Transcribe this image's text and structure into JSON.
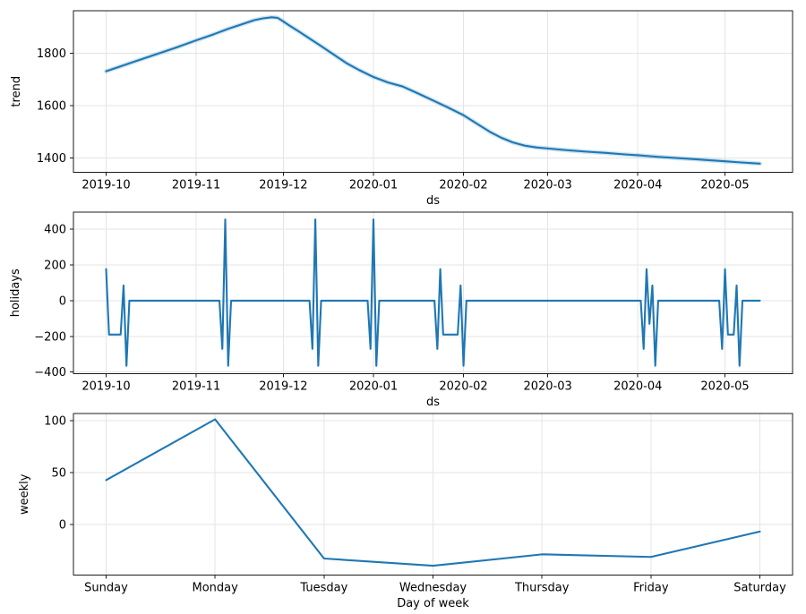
{
  "figure": {
    "kind": "matplotlib-forecast-components",
    "background": "#ffffff",
    "line_color": "#1f77b4",
    "uncertainty_color": "#0072B2",
    "grid_color": "#e5e5e5",
    "spine_color": "#1c1c1c",
    "text_color": "#000000"
  },
  "chart_data": [
    {
      "type": "line",
      "name": "trend",
      "xlabel": "ds",
      "ylabel": "trend",
      "x_unit": "days since 2019-10-01",
      "xlim": [
        -11.25,
        236.25
      ],
      "ylim": [
        1345,
        1962
      ],
      "grid": true,
      "uncertainty_halo": true,
      "xticks": {
        "values": [
          0,
          31,
          61,
          92,
          123,
          152,
          183,
          213
        ],
        "labels": [
          "2019-10",
          "2019-11",
          "2019-12",
          "2020-01",
          "2020-02",
          "2020-03",
          "2020-04",
          "2020-05"
        ]
      },
      "yticks": {
        "values": [
          1400,
          1600,
          1800
        ],
        "labels": [
          "1400",
          "1600",
          "1800"
        ]
      },
      "points": [
        [
          0,
          1731
        ],
        [
          8,
          1761
        ],
        [
          16,
          1791
        ],
        [
          24,
          1821
        ],
        [
          31,
          1849
        ],
        [
          37,
          1872
        ],
        [
          42,
          1893
        ],
        [
          45,
          1904
        ],
        [
          48,
          1915
        ],
        [
          51,
          1926
        ],
        [
          54,
          1933
        ],
        [
          57,
          1937
        ],
        [
          59,
          1935
        ],
        [
          61,
          1921
        ],
        [
          63,
          1906
        ],
        [
          66,
          1885
        ],
        [
          70,
          1856
        ],
        [
          74,
          1827
        ],
        [
          78,
          1797
        ],
        [
          83,
          1760
        ],
        [
          87,
          1736
        ],
        [
          92,
          1709
        ],
        [
          97,
          1688
        ],
        [
          102,
          1673
        ],
        [
          107,
          1648
        ],
        [
          112,
          1622
        ],
        [
          117,
          1596
        ],
        [
          123,
          1563
        ],
        [
          128,
          1528
        ],
        [
          132,
          1500
        ],
        [
          136,
          1477
        ],
        [
          140,
          1459
        ],
        [
          144,
          1447
        ],
        [
          148,
          1440
        ],
        [
          152,
          1436
        ],
        [
          158,
          1430
        ],
        [
          165,
          1424
        ],
        [
          172,
          1419
        ],
        [
          179,
          1413
        ],
        [
          183,
          1410
        ],
        [
          190,
          1404
        ],
        [
          197,
          1399
        ],
        [
          204,
          1394
        ],
        [
          209,
          1390
        ],
        [
          213,
          1387
        ],
        [
          218,
          1383
        ],
        [
          225,
          1378
        ]
      ]
    },
    {
      "type": "line",
      "name": "holidays",
      "xlabel": "ds",
      "ylabel": "holidays",
      "x_unit": "days since 2019-10-01",
      "xlim": [
        -11.25,
        236.25
      ],
      "ylim": [
        -409,
        496
      ],
      "grid": true,
      "uncertainty_halo": false,
      "xticks": {
        "values": [
          0,
          31,
          61,
          92,
          123,
          152,
          183,
          213
        ],
        "labels": [
          "2019-10",
          "2019-11",
          "2019-12",
          "2020-01",
          "2020-02",
          "2020-03",
          "2020-04",
          "2020-05"
        ]
      },
      "yticks": {
        "values": [
          -400,
          -200,
          0,
          200,
          400
        ],
        "labels": [
          "−400",
          "−200",
          "0",
          "200",
          "400"
        ]
      },
      "daily_range": [
        0,
        225
      ],
      "default_value": 0,
      "nonzero_points": [
        [
          0,
          177
        ],
        [
          1,
          -190
        ],
        [
          2,
          -190
        ],
        [
          3,
          -190
        ],
        [
          4,
          -190
        ],
        [
          5,
          -190
        ],
        [
          6,
          85
        ],
        [
          7,
          -365
        ],
        [
          40,
          -270
        ],
        [
          41,
          455
        ],
        [
          42,
          -365
        ],
        [
          71,
          -270
        ],
        [
          72,
          455
        ],
        [
          73,
          -365
        ],
        [
          91,
          -270
        ],
        [
          92,
          455
        ],
        [
          93,
          -365
        ],
        [
          114,
          -270
        ],
        [
          115,
          177
        ],
        [
          116,
          -190
        ],
        [
          117,
          -190
        ],
        [
          118,
          -190
        ],
        [
          119,
          -190
        ],
        [
          120,
          -190
        ],
        [
          121,
          -190
        ],
        [
          122,
          85
        ],
        [
          123,
          -365
        ],
        [
          185,
          -270
        ],
        [
          186,
          177
        ],
        [
          187,
          -130
        ],
        [
          188,
          85
        ],
        [
          189,
          -365
        ],
        [
          212,
          -270
        ],
        [
          213,
          177
        ],
        [
          214,
          -190
        ],
        [
          215,
          -190
        ],
        [
          216,
          -190
        ],
        [
          217,
          85
        ],
        [
          218,
          -365
        ]
      ]
    },
    {
      "type": "line",
      "name": "weekly",
      "xlabel": "Day of week",
      "ylabel": "weekly",
      "xlim": [
        -0.3,
        6.3
      ],
      "ylim": [
        -49,
        107
      ],
      "grid": true,
      "uncertainty_halo": false,
      "xticks": {
        "values": [
          0,
          1,
          2,
          3,
          4,
          5,
          6
        ],
        "labels": [
          "Sunday",
          "Monday",
          "Tuesday",
          "Wednesday",
          "Thursday",
          "Friday",
          "Saturday"
        ]
      },
      "yticks": {
        "values": [
          0,
          50,
          100
        ],
        "labels": [
          "0",
          "50",
          "100"
        ]
      },
      "categories": [
        "Sunday",
        "Monday",
        "Tuesday",
        "Wednesday",
        "Thursday",
        "Friday",
        "Saturday"
      ],
      "points": [
        [
          0,
          42.7
        ],
        [
          1,
          101.4
        ],
        [
          2,
          -33
        ],
        [
          3,
          -40
        ],
        [
          4,
          -29
        ],
        [
          5,
          -31.5
        ],
        [
          6,
          -7
        ]
      ]
    }
  ]
}
